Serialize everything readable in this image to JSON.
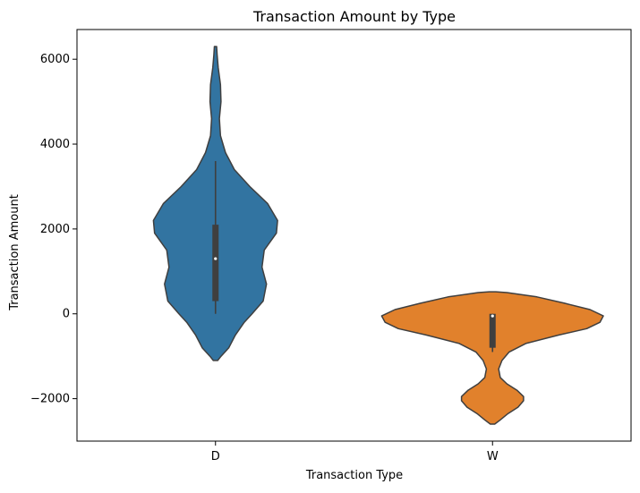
{
  "chart_data": {
    "type": "violin",
    "title": "Transaction Amount by Type",
    "xlabel": "Transaction Type",
    "ylabel": "Transaction Amount",
    "ylim": [
      -3000,
      6700
    ],
    "yticks": [
      -2000,
      0,
      2000,
      4000,
      6000
    ],
    "ytick_labels": [
      "−2000",
      "0",
      "2000",
      "4000",
      "6000"
    ],
    "grid": false,
    "categories": [
      "D",
      "W"
    ],
    "colors": {
      "D": "#3274a1",
      "W": "#e1812c",
      "outline": "#3f3f3f",
      "box": "#3f3f3f",
      "median": "#ffffff"
    },
    "violins": [
      {
        "category": "D",
        "min": -1100,
        "max": 6300,
        "whisker_low": 0,
        "whisker_high": 3600,
        "q1": 300,
        "median": 1300,
        "q3": 2100,
        "profile": [
          [
            -1100,
            0.02
          ],
          [
            -1000,
            0.05
          ],
          [
            -800,
            0.12
          ],
          [
            -500,
            0.18
          ],
          [
            -200,
            0.26
          ],
          [
            0,
            0.33
          ],
          [
            300,
            0.43
          ],
          [
            700,
            0.46
          ],
          [
            1100,
            0.42
          ],
          [
            1500,
            0.44
          ],
          [
            1900,
            0.55
          ],
          [
            2200,
            0.56
          ],
          [
            2600,
            0.47
          ],
          [
            3000,
            0.31
          ],
          [
            3400,
            0.17
          ],
          [
            3800,
            0.09
          ],
          [
            4200,
            0.045
          ],
          [
            4600,
            0.035
          ],
          [
            5000,
            0.05
          ],
          [
            5400,
            0.045
          ],
          [
            5800,
            0.025
          ],
          [
            6100,
            0.015
          ],
          [
            6300,
            0.01
          ]
        ]
      },
      {
        "category": "W",
        "min": -2600,
        "max": 520,
        "whisker_low": -900,
        "whisker_high": 0,
        "q1": -800,
        "median": -50,
        "q3": 0,
        "profile": [
          [
            -2600,
            0.02
          ],
          [
            -2500,
            0.07
          ],
          [
            -2350,
            0.14
          ],
          [
            -2200,
            0.23
          ],
          [
            -2050,
            0.28
          ],
          [
            -1950,
            0.28
          ],
          [
            -1800,
            0.22
          ],
          [
            -1650,
            0.13
          ],
          [
            -1500,
            0.07
          ],
          [
            -1300,
            0.055
          ],
          [
            -1100,
            0.085
          ],
          [
            -900,
            0.15
          ],
          [
            -700,
            0.3
          ],
          [
            -500,
            0.6
          ],
          [
            -350,
            0.85
          ],
          [
            -200,
            0.97
          ],
          [
            -50,
            1.0
          ],
          [
            100,
            0.88
          ],
          [
            250,
            0.65
          ],
          [
            400,
            0.4
          ],
          [
            500,
            0.13
          ],
          [
            520,
            0.03
          ]
        ]
      }
    ]
  }
}
